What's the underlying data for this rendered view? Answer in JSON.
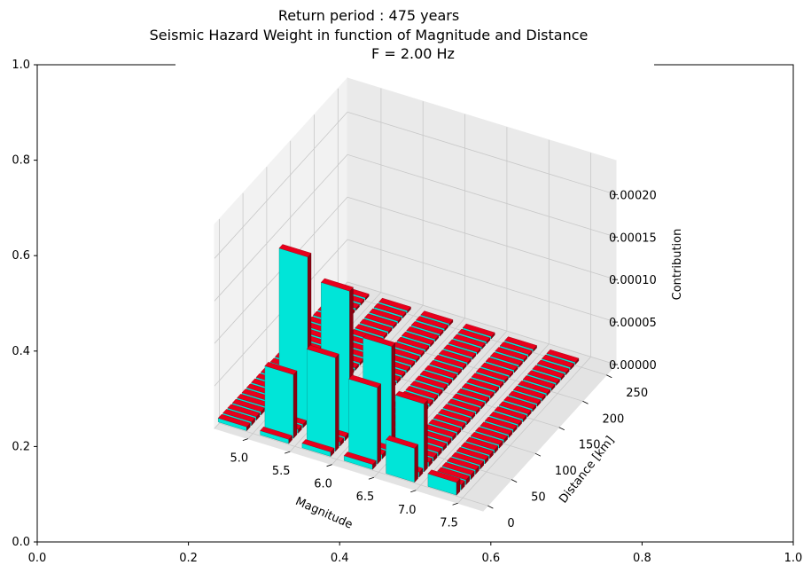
{
  "title_lines": [
    "Return period : 475 years",
    "Seismic Hazard Weight in function of Magnitude and Distance",
    "F = 2.00 Hz"
  ],
  "outer_axes": {
    "xlim": [
      0.0,
      1.0
    ],
    "ylim": [
      0.0,
      1.0
    ],
    "x_ticks": [
      "0.0",
      "0.2",
      "0.4",
      "0.6",
      "0.8",
      "1.0"
    ],
    "y_ticks": [
      "0.0",
      "0.2",
      "0.4",
      "0.6",
      "0.8",
      "1.0"
    ]
  },
  "chart_data": {
    "type": "bar3d",
    "xlabel": "Magnitude",
    "ylabel": "Distance [km]",
    "zlabel": "Contribution",
    "x_ticks": [
      "5.0",
      "5.5",
      "6.0",
      "6.5",
      "7.0",
      "7.5"
    ],
    "y_ticks": [
      "0",
      "50",
      "100",
      "150",
      "200",
      "250"
    ],
    "z_ticks": [
      "0.00000",
      "0.00005",
      "0.00010",
      "0.00015",
      "0.00020"
    ],
    "xlim": [
      4.6,
      7.8
    ],
    "ylim": [
      -10,
      270
    ],
    "zlim": [
      0,
      0.00024
    ],
    "colors": {
      "top_face": "#e8001c",
      "side_face": "#00e5d8",
      "dark_face": "#8a0010"
    },
    "magnitude_bins": [
      4.75,
      5.25,
      5.75,
      6.25,
      6.75,
      7.25
    ],
    "distance_bins": [
      5,
      15,
      25,
      35,
      45,
      55,
      65,
      75,
      85,
      95,
      105,
      115,
      125,
      135,
      145,
      155,
      165,
      175,
      185,
      195,
      205,
      215,
      225,
      235,
      245,
      255
    ],
    "notable_bars": [
      {
        "magnitude": 5.25,
        "distance": 45,
        "value": 0.000195
      },
      {
        "magnitude": 5.75,
        "distance": 45,
        "value": 0.00017
      },
      {
        "magnitude": 6.25,
        "distance": 45,
        "value": 0.00012
      },
      {
        "magnitude": 5.75,
        "distance": 15,
        "value": 0.00011
      },
      {
        "magnitude": 6.25,
        "distance": 15,
        "value": 9e-05
      },
      {
        "magnitude": 6.75,
        "distance": 25,
        "value": 8e-05
      },
      {
        "magnitude": 5.25,
        "distance": 15,
        "value": 7.5e-05
      },
      {
        "magnitude": 6.75,
        "distance": 5,
        "value": 4e-05
      },
      {
        "magnitude": 7.25,
        "distance": 5,
        "value": 1.5e-05
      }
    ]
  }
}
